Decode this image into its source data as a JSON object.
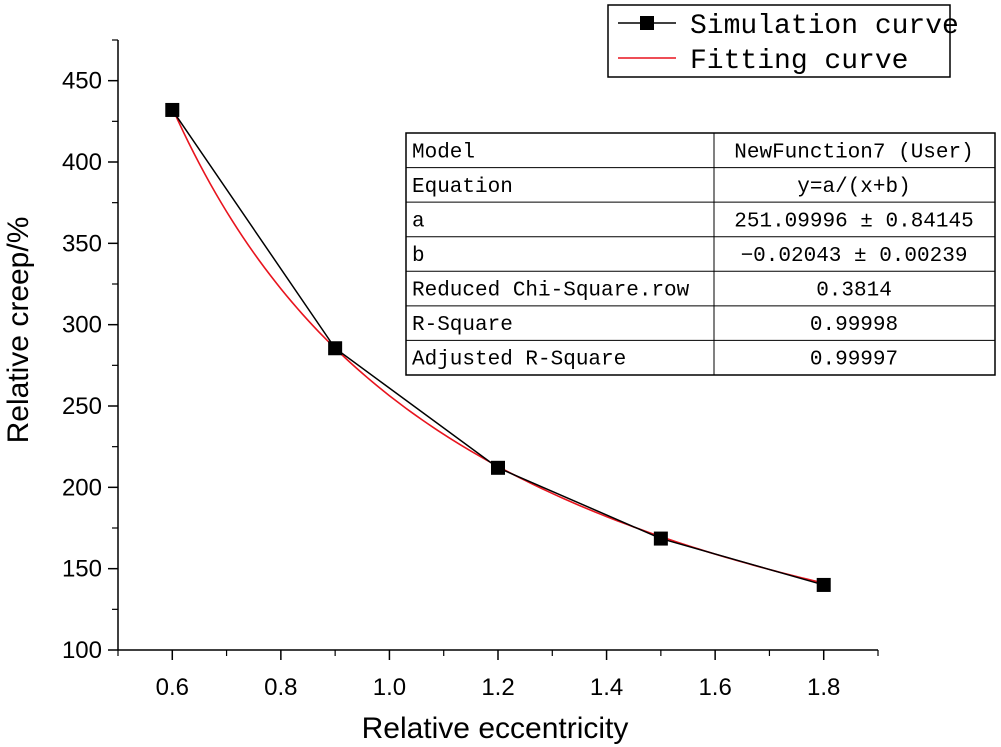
{
  "chart_data": {
    "type": "line",
    "xlabel": "Relative eccentricity",
    "ylabel": "Relative creep/%",
    "xlim": [
      0.5,
      1.9
    ],
    "ylim": [
      100,
      475
    ],
    "xticks": [
      0.6,
      0.8,
      1.0,
      1.2,
      1.4,
      1.6,
      1.8
    ],
    "xtick_labels": [
      "0.6",
      "0.8",
      "1.0",
      "1.2",
      "1.4",
      "1.6",
      "1.8"
    ],
    "yticks": [
      100,
      150,
      200,
      250,
      300,
      350,
      400,
      450
    ],
    "ytick_labels": [
      "100",
      "150",
      "200",
      "250",
      "300",
      "350",
      "400",
      "450"
    ],
    "series": [
      {
        "name": "Simulation curve",
        "color": "#000000",
        "marker": "square",
        "x": [
          0.6,
          0.9,
          1.2,
          1.5,
          1.8
        ],
        "y": [
          432,
          285.5,
          212,
          168.5,
          140
        ]
      },
      {
        "name": "Fitting curve",
        "color": "#e8141e",
        "function": "y=a/(x+b)",
        "params": {
          "a": 251.09996,
          "b": -0.02043
        },
        "x_range": [
          0.6,
          1.8
        ]
      }
    ],
    "legend": {
      "position": "top-right",
      "entries": [
        "Simulation curve",
        "Fitting curve"
      ]
    },
    "fit_table": {
      "rows": [
        {
          "label": "Model",
          "value": "NewFunction7 (User)"
        },
        {
          "label": "Equation",
          "value": "y=a/(x+b)"
        },
        {
          "label": "a",
          "value": "251.09996 ± 0.84145"
        },
        {
          "label": "b",
          "value": "−0.02043 ± 0.00239"
        },
        {
          "label": "Reduced Chi-Square.row",
          "value": "0.3814"
        },
        {
          "label": "R-Square",
          "value": "0.99998"
        },
        {
          "label": "Adjusted R-Square",
          "value": "0.99997"
        }
      ]
    }
  }
}
